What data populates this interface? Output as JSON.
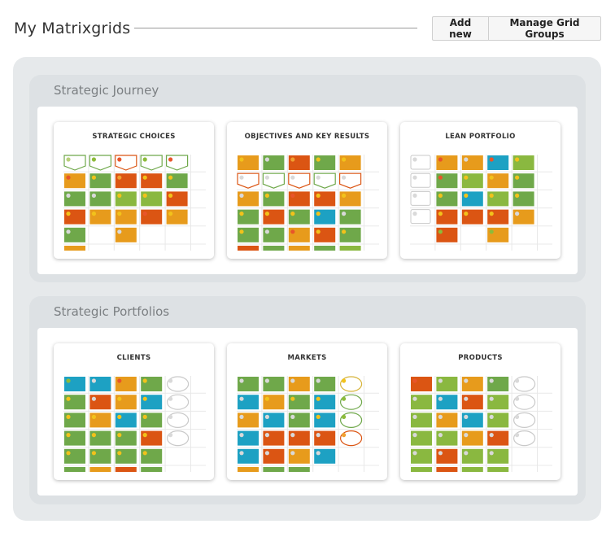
{
  "header": {
    "title": "My Matrixgrids",
    "add_label": "Add new",
    "manage_label": "Manage Grid Groups"
  },
  "colors": {
    "green": "#6fa84a",
    "lime": "#8ab840",
    "orange": "#e79b1c",
    "red": "#db5513",
    "blue": "#1da1c3",
    "gold": "#dc9b2a"
  },
  "groups": [
    {
      "title": "Strategic Journey",
      "cards": [
        {
          "title": "STRATEGIC CHOICES",
          "rows": [
            [
              "hg:l",
              "hg:g",
              "hr:r",
              "hg:g",
              "hg:r"
            ],
            [
              "O:r",
              "G:y",
              "R:o",
              "R:y",
              "G:y"
            ],
            [
              "G:w",
              "G:w",
              "L:y",
              "L:y",
              "R:y"
            ],
            [
              "R:y",
              "O:y",
              "O:y",
              "R:r",
              "O:y"
            ],
            [
              "G:w",
              "",
              "O:w",
              "",
              ""
            ],
            [
              "O",
              "",
              "",
              "",
              ""
            ]
          ]
        },
        {
          "title": "OBJECTIVES AND KEY RESULTS",
          "rows": [
            [
              "O:y",
              "G:w",
              "R:o",
              "G:y",
              "O:y"
            ],
            [
              "hr:w",
              "hg:w",
              "hr:w",
              "hg:w",
              "hr:w"
            ],
            [
              "O:w",
              "G:y",
              "R:r",
              "R:y",
              "O:y"
            ],
            [
              "G:y",
              "R:y",
              "G:y",
              "B:y",
              "G:w"
            ],
            [
              "G:y",
              "G:w",
              "O:r",
              "R:y",
              "G:y"
            ],
            [
              "R",
              "G",
              "O",
              "G",
              "L"
            ]
          ]
        },
        {
          "title": "LEAN PORTFOLIO",
          "rows": [
            [
              "e:w",
              "O:r",
              "O:w",
              "B:r",
              "L:y"
            ],
            [
              "e:w",
              "G:r",
              "L:y",
              "O:y",
              "G:y"
            ],
            [
              "e:w",
              "G:y",
              "B:y",
              "L:y",
              "G:y"
            ],
            [
              "e:w",
              "R:y",
              "R:y",
              "R:y",
              "O:w"
            ],
            [
              "",
              "R:g",
              "",
              "O:g",
              ""
            ]
          ]
        }
      ]
    },
    {
      "title": "Strategic Portfolios",
      "cards": [
        {
          "title": "CLIENTS",
          "rows": [
            [
              "B:g",
              "B:w",
              "O:r",
              "G:y",
              "c:w"
            ],
            [
              "G:y",
              "R:w",
              "O:y",
              "B:y",
              "c:w"
            ],
            [
              "G:y",
              "O:y",
              "B:y",
              "G:y",
              "c:w"
            ],
            [
              "G:y",
              "G:y",
              "G:y",
              "R:y",
              "c:w"
            ],
            [
              "G:y",
              "G:y",
              "G:y",
              "G:y",
              ""
            ],
            [
              "G",
              "O",
              "R",
              "G",
              ""
            ]
          ]
        },
        {
          "title": "MARKETS",
          "rows": [
            [
              "G:w",
              "G:w",
              "O:w",
              "G:w",
              "cy:y"
            ],
            [
              "B:w",
              "O:y",
              "G:y",
              "B:y",
              "cg:g"
            ],
            [
              "O:w",
              "B:w",
              "G:w",
              "B:y",
              "cg:g"
            ],
            [
              "B:w",
              "R:w",
              "R:w",
              "R:w",
              "co:o"
            ],
            [
              "B:w",
              "R:w",
              "O:w",
              "B:w",
              ""
            ],
            [
              "O",
              "G",
              "G",
              "",
              ""
            ]
          ]
        },
        {
          "title": "PRODUCTS",
          "rows": [
            [
              "R:r",
              "L:w",
              "O:w",
              "G:w",
              "c:w"
            ],
            [
              "L:w",
              "B:w",
              "R:w",
              "L:w",
              "c:w"
            ],
            [
              "L:w",
              "O:w",
              "B:w",
              "L:w",
              "c:w"
            ],
            [
              "L:w",
              "L:w",
              "O:w",
              "R:w",
              "c:w"
            ],
            [
              "L:w",
              "R:w",
              "L:w",
              "L:w",
              ""
            ],
            [
              "L",
              "R",
              "L",
              "L",
              ""
            ]
          ]
        }
      ]
    }
  ]
}
